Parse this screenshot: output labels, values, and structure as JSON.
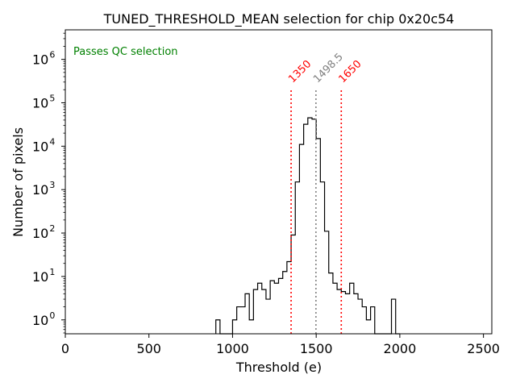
{
  "chart_data": {
    "type": "histogram",
    "title": "TUNED_THRESHOLD_MEAN selection for chip 0x20c54",
    "xlabel": "Threshold (e)",
    "ylabel": "Number of pixels",
    "xlim": [
      0,
      2550
    ],
    "ylim_log10": [
      -0.32,
      6.68
    ],
    "x_ticks": [
      0,
      500,
      1000,
      1500,
      2000,
      2500
    ],
    "x_tick_labels": [
      "0",
      "500",
      "1000",
      "1500",
      "2000",
      "2500"
    ],
    "y_ticks_exp": [
      0,
      1,
      2,
      3,
      4,
      5,
      6
    ],
    "y_tick_base": "10",
    "y_tick_exponents": [
      "0",
      "1",
      "2",
      "3",
      "4",
      "5",
      "6"
    ],
    "status_text": "Passes QC selection",
    "status_color": "#008000",
    "line_color": "#000000",
    "bins": [
      {
        "x0": 900,
        "x1": 925,
        "count": 1
      },
      {
        "x0": 925,
        "x1": 1000,
        "count": 0
      },
      {
        "x0": 1000,
        "x1": 1025,
        "count": 1
      },
      {
        "x0": 1025,
        "x1": 1075,
        "count": 2
      },
      {
        "x0": 1075,
        "x1": 1100,
        "count": 4
      },
      {
        "x0": 1100,
        "x1": 1125,
        "count": 1
      },
      {
        "x0": 1125,
        "x1": 1150,
        "count": 5
      },
      {
        "x0": 1150,
        "x1": 1175,
        "count": 7
      },
      {
        "x0": 1175,
        "x1": 1200,
        "count": 5
      },
      {
        "x0": 1200,
        "x1": 1225,
        "count": 3
      },
      {
        "x0": 1225,
        "x1": 1250,
        "count": 8
      },
      {
        "x0": 1250,
        "x1": 1275,
        "count": 7
      },
      {
        "x0": 1275,
        "x1": 1300,
        "count": 9
      },
      {
        "x0": 1300,
        "x1": 1325,
        "count": 13
      },
      {
        "x0": 1325,
        "x1": 1350,
        "count": 22
      },
      {
        "x0": 1350,
        "x1": 1375,
        "count": 90
      },
      {
        "x0": 1375,
        "x1": 1400,
        "count": 1500
      },
      {
        "x0": 1400,
        "x1": 1425,
        "count": 11000
      },
      {
        "x0": 1425,
        "x1": 1450,
        "count": 32000
      },
      {
        "x0": 1450,
        "x1": 1475,
        "count": 45000
      },
      {
        "x0": 1475,
        "x1": 1500,
        "count": 42000
      },
      {
        "x0": 1500,
        "x1": 1525,
        "count": 15000
      },
      {
        "x0": 1525,
        "x1": 1550,
        "count": 1500
      },
      {
        "x0": 1550,
        "x1": 1575,
        "count": 110
      },
      {
        "x0": 1575,
        "x1": 1600,
        "count": 12
      },
      {
        "x0": 1600,
        "x1": 1625,
        "count": 7
      },
      {
        "x0": 1625,
        "x1": 1650,
        "count": 5
      },
      {
        "x0": 1650,
        "x1": 1675,
        "count": 4.5
      },
      {
        "x0": 1675,
        "x1": 1700,
        "count": 4
      },
      {
        "x0": 1700,
        "x1": 1725,
        "count": 7
      },
      {
        "x0": 1725,
        "x1": 1750,
        "count": 4
      },
      {
        "x0": 1750,
        "x1": 1775,
        "count": 3
      },
      {
        "x0": 1775,
        "x1": 1800,
        "count": 2
      },
      {
        "x0": 1800,
        "x1": 1825,
        "count": 1
      },
      {
        "x0": 1825,
        "x1": 1850,
        "count": 2
      },
      {
        "x0": 1850,
        "x1": 1950,
        "count": 0
      },
      {
        "x0": 1950,
        "x1": 1975,
        "count": 3
      },
      {
        "x0": 1975,
        "x1": 2000,
        "count": 0
      }
    ],
    "vlines": [
      {
        "x": 1350,
        "label": "1350",
        "color": "#ff0000"
      },
      {
        "x": 1498.5,
        "label": "1498.5",
        "color": "#808080"
      },
      {
        "x": 1650,
        "label": "1650",
        "color": "#ff0000"
      }
    ],
    "vline_top_count": 200000
  }
}
